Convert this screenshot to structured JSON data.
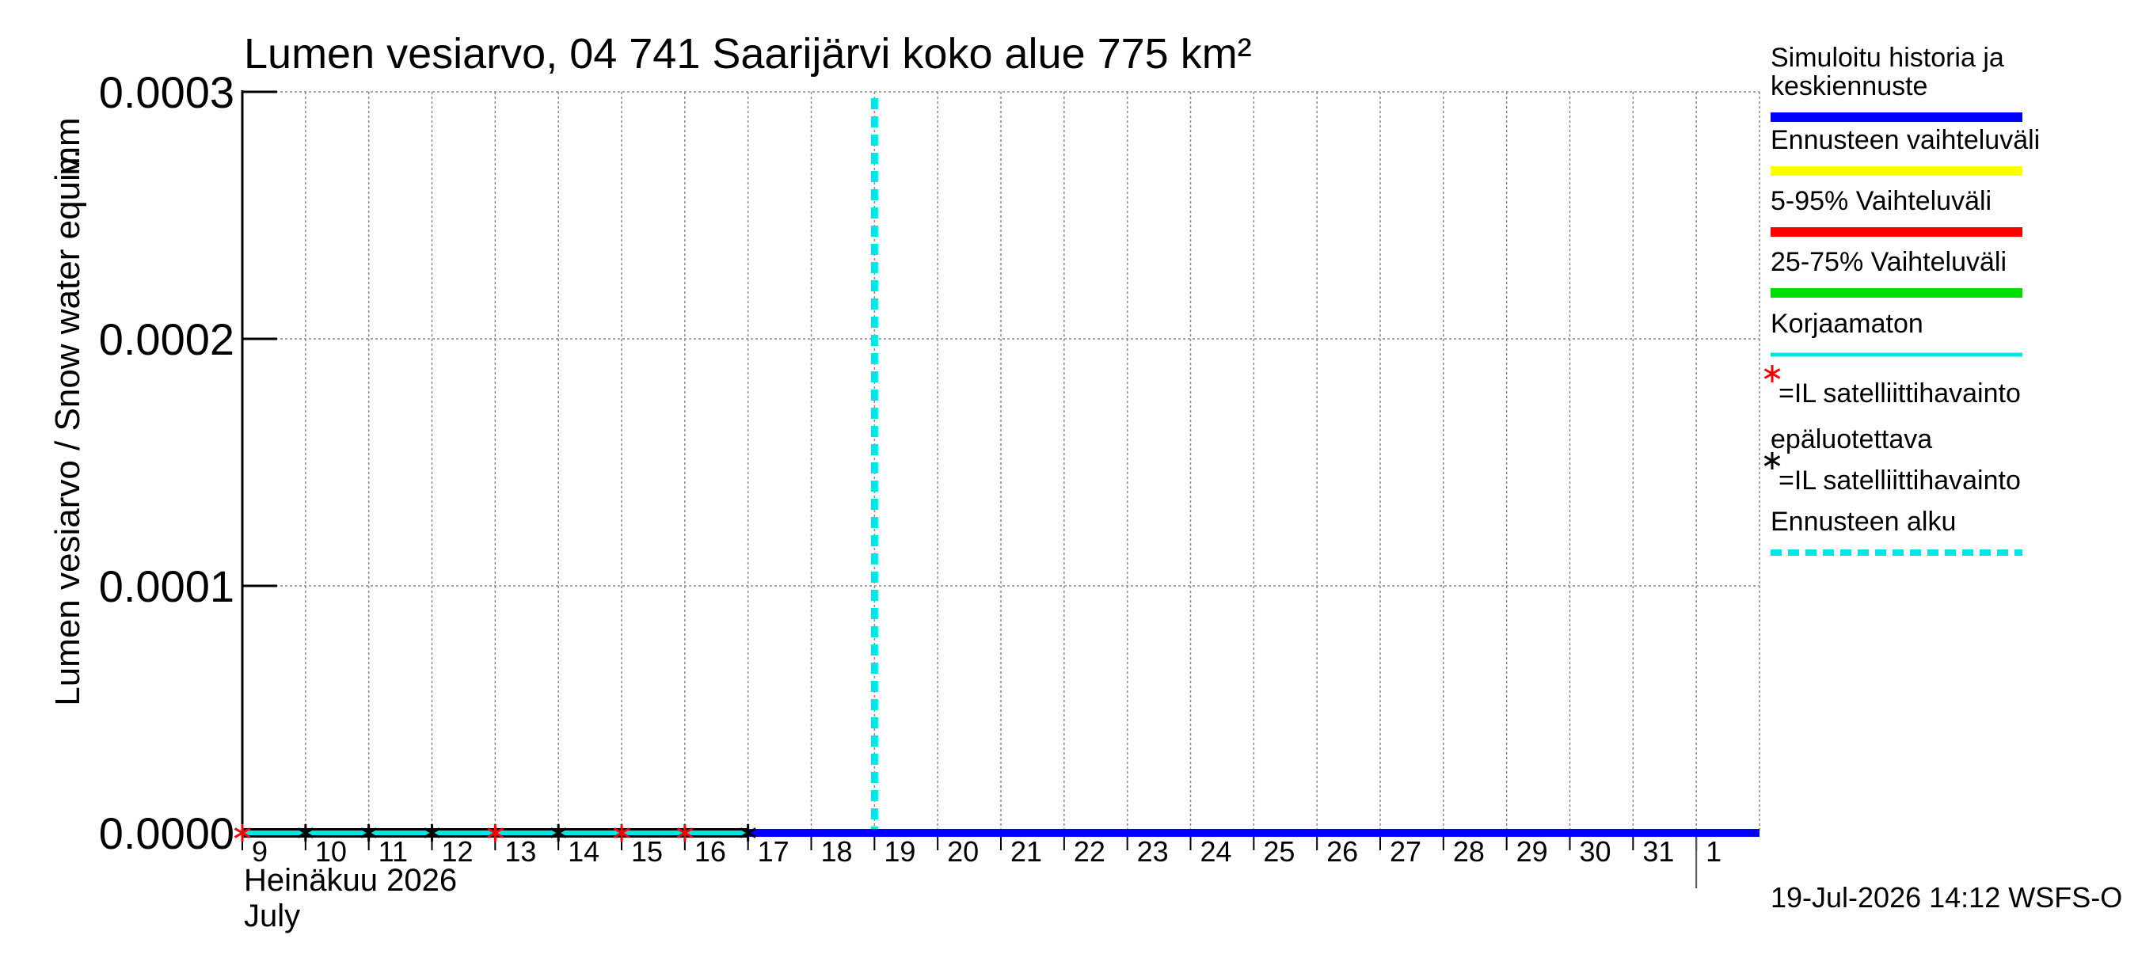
{
  "chart_data": {
    "type": "line",
    "title": "Lumen vesiarvo, 04 741 Saarijärvi koko alue 775 km²",
    "ylabel": "Lumen vesiarvo / Snow water equiv.",
    "yunit": "mm",
    "ylim": [
      0,
      0.0003
    ],
    "yticks": [
      "0.0000",
      "0.0001",
      "0.0002",
      "0.0003"
    ],
    "xlim": [
      "2026-07-09",
      "2026-08-02"
    ],
    "x_ticklabels": [
      "9",
      "10",
      "11",
      "12",
      "13",
      "14",
      "15",
      "16",
      "17",
      "18",
      "19",
      "20",
      "21",
      "22",
      "23",
      "24",
      "25",
      "26",
      "27",
      "28",
      "29",
      "30",
      "31",
      "1"
    ],
    "month_label_fi": "Heinäkuu  2026",
    "month_label_en": "July",
    "footer": "19-Jul-2026 14:12 WSFS-O",
    "grid": true,
    "legend_position": "right",
    "forecast_start": "2026-07-19",
    "series": [
      {
        "name": "Simuloitu historia ja keskiennuste",
        "color": "#0000ff",
        "x": [
          "2026-07-09",
          "2026-07-10",
          "2026-07-11",
          "2026-07-12",
          "2026-07-13",
          "2026-07-14",
          "2026-07-15",
          "2026-07-16",
          "2026-07-17",
          "2026-07-18",
          "2026-07-19",
          "2026-07-20",
          "2026-07-21",
          "2026-07-22",
          "2026-07-23",
          "2026-07-24",
          "2026-07-25",
          "2026-07-26",
          "2026-07-27",
          "2026-07-28",
          "2026-07-29",
          "2026-07-30",
          "2026-07-31",
          "2026-08-01",
          "2026-08-02"
        ],
        "y": [
          0,
          0,
          0,
          0,
          0,
          0,
          0,
          0,
          0,
          0,
          0,
          0,
          0,
          0,
          0,
          0,
          0,
          0,
          0,
          0,
          0,
          0,
          0,
          0,
          0
        ]
      },
      {
        "name": "Korjaamaton",
        "color": "#00e5e5",
        "x": [
          "2026-07-09",
          "2026-07-10",
          "2026-07-11",
          "2026-07-12",
          "2026-07-13",
          "2026-07-14",
          "2026-07-15",
          "2026-07-16",
          "2026-07-17"
        ],
        "y": [
          0,
          0,
          0,
          0,
          0,
          0,
          0,
          0,
          0
        ]
      }
    ],
    "markers": [
      {
        "name": "IL satelliittihavainto epäluotettava",
        "color": "#ff0000",
        "x": [
          "2026-07-09",
          "2026-07-13",
          "2026-07-15",
          "2026-07-16"
        ],
        "y": [
          0,
          0,
          0,
          0
        ]
      },
      {
        "name": "IL satelliittihavainto",
        "color": "#000000",
        "x": [
          "2026-07-10",
          "2026-07-11",
          "2026-07-12",
          "2026-07-14",
          "2026-07-17"
        ],
        "y": [
          0,
          0,
          0,
          0,
          0
        ]
      }
    ],
    "legend": [
      {
        "label_lines": [
          "Simuloitu historia ja",
          "keskiennuste"
        ],
        "color": "#0000ff",
        "style": "thick"
      },
      {
        "label_lines": [
          "Ennusteen vaihteluväli"
        ],
        "color": "#ffff00",
        "style": "thick"
      },
      {
        "label_lines": [
          "5-95% Vaihteluväli"
        ],
        "color": "#ff0000",
        "style": "thick"
      },
      {
        "label_lines": [
          "25-75% Vaihteluväli"
        ],
        "color": "#00dd00",
        "style": "thick"
      },
      {
        "label_lines": [
          "Korjaamaton"
        ],
        "color": "#00e5e5",
        "style": "thin"
      },
      {
        "label_lines": [
          "=IL satelliittihavainto",
          "epäluotettava"
        ],
        "color": "#ff0000",
        "style": "star"
      },
      {
        "label_lines": [
          "=IL satelliittihavainto"
        ],
        "color": "#000000",
        "style": "star"
      },
      {
        "label_lines": [
          "Ennusteen alku"
        ],
        "color": "#00e5e5",
        "style": "dashed"
      }
    ]
  }
}
